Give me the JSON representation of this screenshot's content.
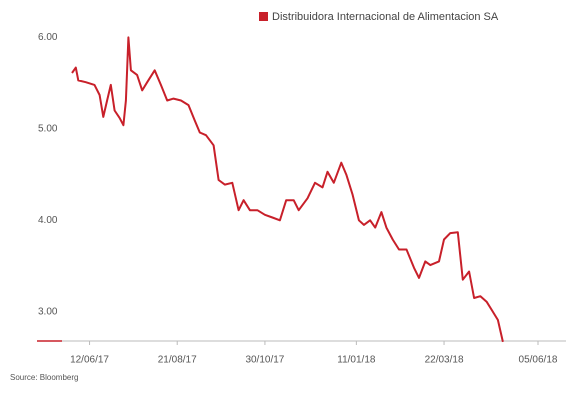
{
  "chart_data": {
    "type": "line",
    "legend": "Distribuidora Internacional de Alimentacion SA",
    "source": "Source: Bloomberg",
    "color": "#c8202a",
    "x": [
      "29/05/17",
      "01/06/17",
      "03/06/17",
      "09/06/17",
      "16/06/17",
      "20/06/17",
      "23/06/17",
      "26/06/17",
      "29/06/17",
      "02/07/17",
      "06/07/17",
      "09/07/17",
      "11/07/17",
      "13/07/17",
      "15/07/17",
      "20/07/17",
      "24/07/17",
      "28/07/17",
      "03/08/17",
      "08/08/17",
      "13/08/17",
      "18/08/17",
      "24/08/17",
      "30/08/17",
      "04/09/17",
      "08/09/17",
      "13/09/17",
      "19/09/17",
      "23/09/17",
      "28/09/17",
      "04/10/17",
      "09/10/17",
      "13/10/17",
      "18/10/17",
      "24/10/17",
      "30/10/17",
      "05/11/17",
      "11/11/17",
      "16/11/17",
      "22/11/17",
      "26/11/17",
      "03/12/17",
      "09/12/17",
      "15/12/17",
      "19/12/17",
      "24/12/17",
      "30/12/17",
      "03/01/18",
      "08/01/18",
      "13/01/18",
      "17/01/18",
      "22/01/18",
      "26/01/18",
      "31/01/18",
      "04/02/18",
      "09/02/18",
      "14/02/18",
      "20/02/18",
      "26/02/18",
      "02/03/18",
      "07/03/18",
      "11/03/18",
      "18/03/18",
      "22/03/18",
      "27/03/18",
      "02/04/18",
      "06/04/18",
      "11/04/18",
      "15/04/18",
      "20/04/18",
      "25/04/18",
      "29/04/18",
      "04/05/18",
      "08/05/18"
    ],
    "series": [
      {
        "name": "Distribuidora Internacional de Alimentacion SA",
        "color": "#c8202a",
        "values": [
          5.61,
          5.67,
          5.53,
          5.51,
          5.48,
          5.37,
          5.13,
          5.31,
          5.48,
          5.2,
          5.12,
          5.04,
          5.31,
          6.0,
          5.64,
          5.59,
          5.42,
          5.51,
          5.64,
          5.48,
          5.31,
          5.33,
          5.31,
          5.26,
          5.09,
          4.96,
          4.93,
          4.82,
          4.44,
          4.39,
          4.41,
          4.11,
          4.22,
          4.11,
          4.11,
          4.06,
          4.03,
          4.0,
          4.22,
          4.22,
          4.11,
          4.24,
          4.41,
          4.36,
          4.53,
          4.41,
          4.63,
          4.5,
          4.28,
          4.0,
          3.95,
          4.0,
          3.92,
          4.09,
          3.92,
          3.79,
          3.68,
          3.68,
          3.48,
          3.37,
          3.55,
          3.51,
          3.55,
          3.79,
          3.86,
          3.87,
          3.35,
          3.44,
          3.15,
          3.17,
          3.11,
          3.02,
          2.91,
          2.67
        ]
      }
    ],
    "xlim": [
      "29/05/17",
      "05/06/18"
    ],
    "xticks": [
      "12/06/17",
      "21/08/17",
      "30/10/17",
      "11/01/18",
      "22/03/18",
      "05/06/18"
    ],
    "ylim": [
      2.68,
      6.19
    ],
    "yticks": [
      {
        "value": 3,
        "label": "3.00"
      },
      {
        "value": 4,
        "label": "4.00"
      },
      {
        "value": 5,
        "label": "5.00"
      },
      {
        "value": 6,
        "label": "6.00"
      }
    ]
  }
}
